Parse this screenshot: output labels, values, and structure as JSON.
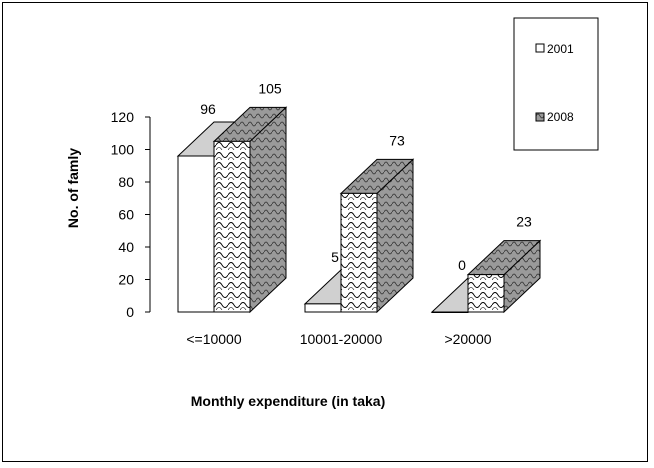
{
  "chart_data": {
    "type": "bar",
    "title": "",
    "xlabel": "Monthly expenditure (in taka)",
    "ylabel": "No. of famly",
    "categories": [
      "<=10000",
      "10001-20000",
      ">20000"
    ],
    "series": [
      {
        "name": "2001",
        "values": [
          96,
          5,
          0
        ],
        "fill": "#ffffff",
        "side": "#c0c0c0",
        "top": "#d0d0d0"
      },
      {
        "name": "2008",
        "values": [
          105,
          73,
          23
        ],
        "fill": "#ffffff",
        "side": "#a8a8a8",
        "top": "#bcbcbc"
      }
    ],
    "ylim": [
      0,
      120
    ],
    "yticks": [
      "0",
      "20",
      "40",
      "60",
      "80",
      "100",
      "120"
    ],
    "legend_position": "top-right"
  }
}
